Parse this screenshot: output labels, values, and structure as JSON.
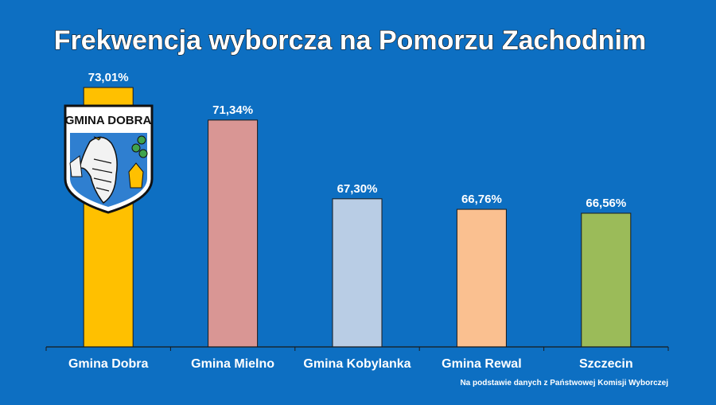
{
  "chart_data": {
    "type": "bar",
    "title": "Frekwencja wyborcza na Pomorzu Zachodnim",
    "categories": [
      "Gmina Dobra",
      "Gmina Mielno",
      "Gmina Kobylanka",
      "Gmina Rewal",
      "Szczecin"
    ],
    "values": [
      73.01,
      71.34,
      67.3,
      66.76,
      66.56
    ],
    "value_labels": [
      "73,01%",
      "71,34%",
      "67,30%",
      "66,76%",
      "66,56%"
    ],
    "colors": [
      "#ffc000",
      "#d99694",
      "#b9cde5",
      "#fac090",
      "#9bbb59"
    ],
    "ylim": [
      59.7,
      73.01
    ],
    "grid": false,
    "source_note": "Na podstawie danych z Państwowej Komisji Wyborczej"
  },
  "crest": {
    "label": "GMINA DOBRA",
    "icon": "coat-of-arms-eagle-icon"
  }
}
